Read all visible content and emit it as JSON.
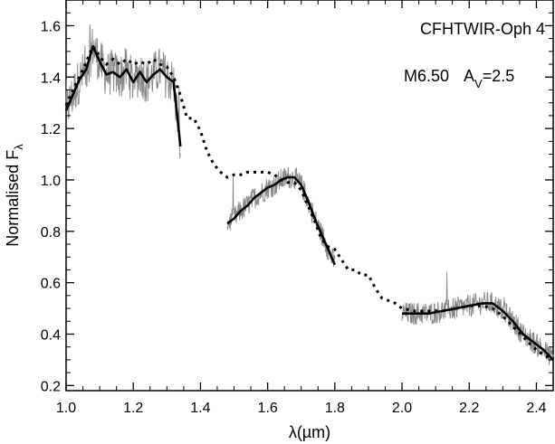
{
  "chart_data": {
    "type": "line",
    "title": "",
    "xlabel": "λ(µm)",
    "ylabel": "Normalised F",
    "ylabel_sub": "λ",
    "xlim": [
      1.0,
      2.45
    ],
    "ylim": [
      0.18,
      1.7
    ],
    "xticks": [
      1.0,
      1.2,
      1.4,
      1.6,
      1.8,
      2.0,
      2.2,
      2.4
    ],
    "xtick_labels": [
      "1.0",
      "1.2",
      "1.4",
      "1.6",
      "1.8",
      "2.0",
      "2.2",
      "2.4"
    ],
    "yticks": [
      0.2,
      0.4,
      0.6,
      0.8,
      1.0,
      1.2,
      1.4,
      1.6
    ],
    "ytick_labels": [
      "0.2",
      "0.4",
      "0.6",
      "0.8",
      "1.0",
      "1.2",
      "1.4",
      "1.6"
    ],
    "grid": false,
    "annotations": {
      "object": "CFHTWIR-Oph 4",
      "spt": "M6.50",
      "av_label": "A",
      "av_sub": "V",
      "av_value": "=2.5"
    },
    "series": [
      {
        "style": "noisy-gray",
        "color": "#888888",
        "segments": [
          {
            "x_start": 1.0,
            "x_end": 1.34
          },
          {
            "x_start": 1.48,
            "x_end": 1.8
          },
          {
            "x_start": 2.0,
            "x_end": 2.45
          }
        ]
      },
      {
        "style": "solid-black",
        "color": "#000000",
        "segments": [
          [
            [
              1.0,
              1.27
            ],
            [
              1.02,
              1.33
            ],
            [
              1.04,
              1.39
            ],
            [
              1.06,
              1.43
            ],
            [
              1.08,
              1.52
            ],
            [
              1.1,
              1.46
            ],
            [
              1.12,
              1.41
            ],
            [
              1.14,
              1.42
            ],
            [
              1.16,
              1.4
            ],
            [
              1.18,
              1.43
            ],
            [
              1.2,
              1.38
            ],
            [
              1.22,
              1.42
            ],
            [
              1.24,
              1.38
            ],
            [
              1.26,
              1.41
            ],
            [
              1.28,
              1.43
            ],
            [
              1.3,
              1.4
            ],
            [
              1.32,
              1.38
            ],
            [
              1.335,
              1.2
            ],
            [
              1.34,
              1.13
            ]
          ],
          [
            [
              1.48,
              0.83
            ],
            [
              1.5,
              0.85
            ],
            [
              1.52,
              0.88
            ],
            [
              1.54,
              0.9
            ],
            [
              1.56,
              0.93
            ],
            [
              1.58,
              0.95
            ],
            [
              1.6,
              0.97
            ],
            [
              1.62,
              0.98
            ],
            [
              1.64,
              1.0
            ],
            [
              1.66,
              1.01
            ],
            [
              1.68,
              1.01
            ],
            [
              1.7,
              0.98
            ],
            [
              1.72,
              0.92
            ],
            [
              1.74,
              0.85
            ],
            [
              1.76,
              0.79
            ],
            [
              1.78,
              0.73
            ],
            [
              1.8,
              0.67
            ]
          ],
          [
            [
              2.0,
              0.48
            ],
            [
              2.04,
              0.48
            ],
            [
              2.08,
              0.48
            ],
            [
              2.12,
              0.49
            ],
            [
              2.16,
              0.5
            ],
            [
              2.2,
              0.51
            ],
            [
              2.24,
              0.52
            ],
            [
              2.27,
              0.52
            ],
            [
              2.3,
              0.49
            ],
            [
              2.33,
              0.45
            ],
            [
              2.36,
              0.4
            ],
            [
              2.39,
              0.37
            ],
            [
              2.42,
              0.34
            ],
            [
              2.45,
              0.3
            ]
          ]
        ]
      },
      {
        "style": "dotted-black",
        "color": "#000000",
        "points": [
          [
            1.0,
            1.29
          ],
          [
            1.02,
            1.35
          ],
          [
            1.04,
            1.4
          ],
          [
            1.06,
            1.46
          ],
          [
            1.08,
            1.52
          ],
          [
            1.1,
            1.48
          ],
          [
            1.12,
            1.45
          ],
          [
            1.14,
            1.47
          ],
          [
            1.16,
            1.45
          ],
          [
            1.18,
            1.47
          ],
          [
            1.2,
            1.45
          ],
          [
            1.22,
            1.46
          ],
          [
            1.24,
            1.45
          ],
          [
            1.26,
            1.47
          ],
          [
            1.28,
            1.45
          ],
          [
            1.3,
            1.44
          ],
          [
            1.32,
            1.4
          ],
          [
            1.34,
            1.33
          ],
          [
            1.36,
            1.24
          ],
          [
            1.38,
            1.24
          ],
          [
            1.4,
            1.19
          ],
          [
            1.42,
            1.11
          ],
          [
            1.44,
            1.06
          ],
          [
            1.46,
            1.03
          ],
          [
            1.48,
            1.01
          ],
          [
            1.5,
            1.02
          ],
          [
            1.52,
            1.02
          ],
          [
            1.54,
            1.03
          ],
          [
            1.56,
            1.03
          ],
          [
            1.58,
            1.03
          ],
          [
            1.6,
            1.03
          ],
          [
            1.62,
            1.02
          ],
          [
            1.64,
            1.0
          ],
          [
            1.66,
            0.99
          ],
          [
            1.68,
            0.99
          ],
          [
            1.7,
            0.96
          ],
          [
            1.72,
            0.9
          ],
          [
            1.74,
            0.84
          ],
          [
            1.76,
            0.77
          ],
          [
            1.78,
            0.74
          ],
          [
            1.8,
            0.73
          ],
          [
            1.82,
            0.69
          ],
          [
            1.84,
            0.65
          ],
          [
            1.86,
            0.65
          ],
          [
            1.88,
            0.63
          ],
          [
            1.9,
            0.63
          ],
          [
            1.92,
            0.58
          ],
          [
            1.94,
            0.54
          ],
          [
            1.96,
            0.53
          ],
          [
            1.98,
            0.52
          ],
          [
            2.0,
            0.5
          ],
          [
            2.04,
            0.49
          ],
          [
            2.08,
            0.49
          ],
          [
            2.12,
            0.49
          ],
          [
            2.16,
            0.5
          ],
          [
            2.2,
            0.51
          ],
          [
            2.24,
            0.51
          ],
          [
            2.27,
            0.5
          ],
          [
            2.3,
            0.47
          ],
          [
            2.33,
            0.43
          ],
          [
            2.36,
            0.39
          ],
          [
            2.39,
            0.35
          ],
          [
            2.42,
            0.32
          ],
          [
            2.45,
            0.3
          ]
        ]
      }
    ]
  }
}
